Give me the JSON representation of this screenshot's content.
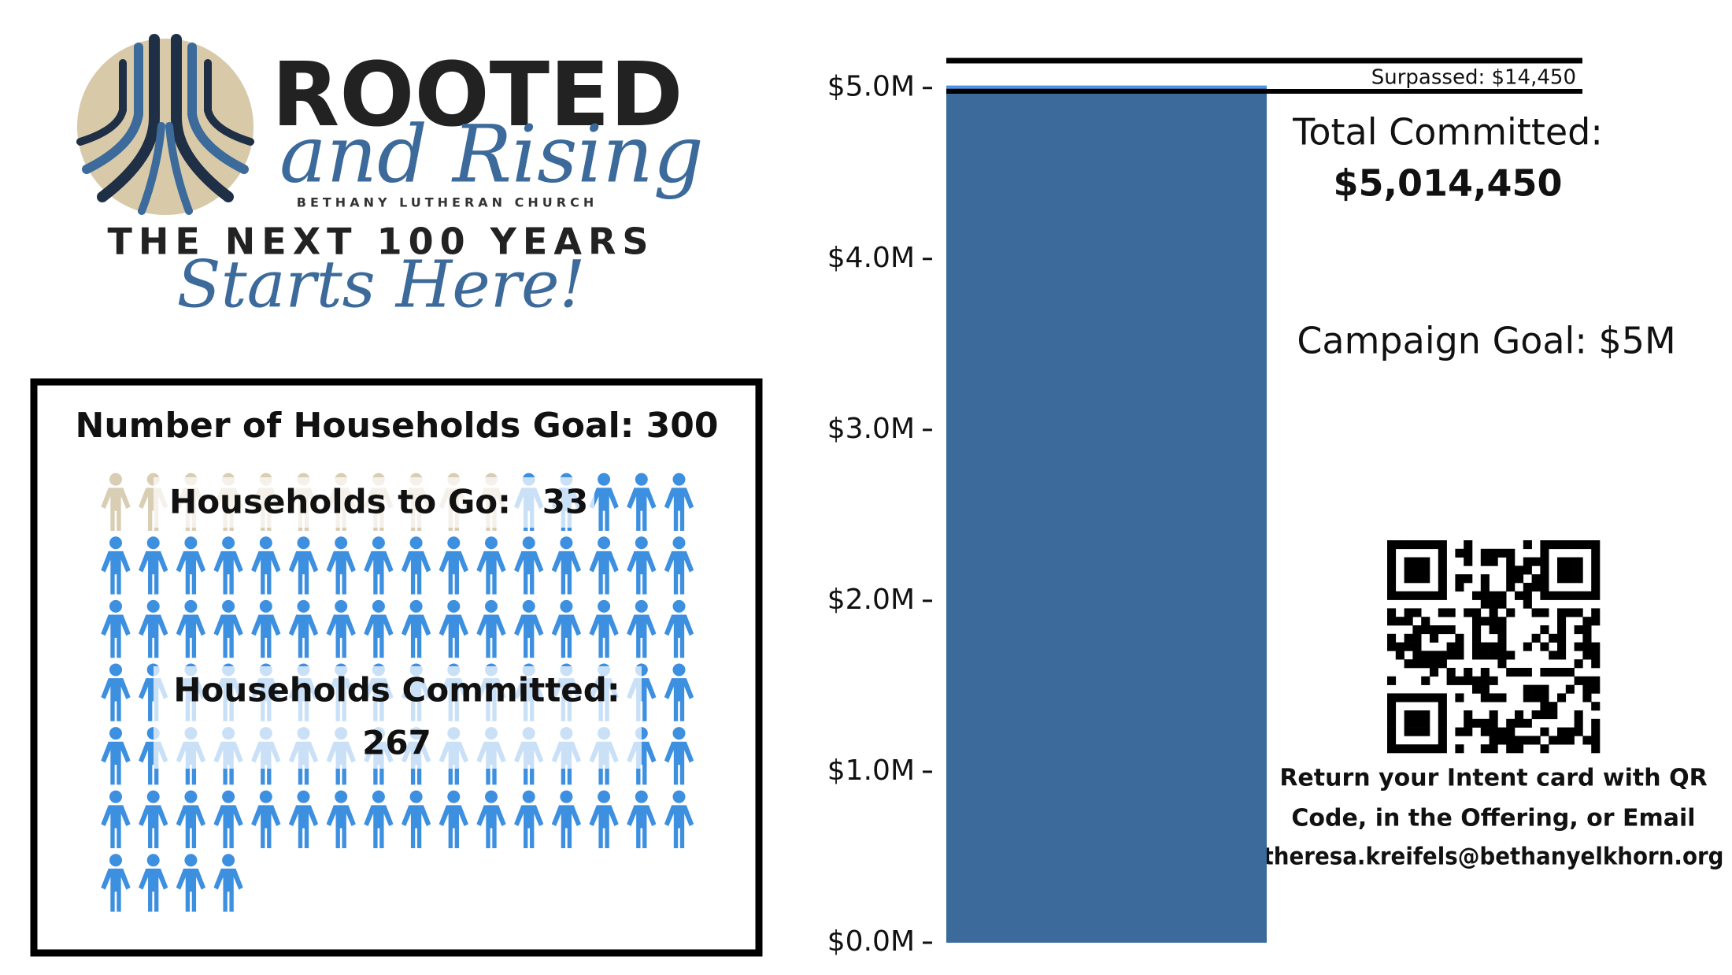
{
  "logo": {
    "title": "ROOTED",
    "subtitle": "and Rising",
    "church": "BETHANY LUTHERAN CHURCH",
    "tagline": "THE NEXT 100 YEARS",
    "tagline_script": "Starts Here!"
  },
  "households": {
    "goal_label": "Number of Households Goal: 300",
    "to_go_label": "Households to Go:",
    "to_go": 33,
    "committed_label": "Households Committed:",
    "committed": 267
  },
  "chart_data": {
    "type": "bar",
    "series": [
      {
        "color": "#3b6a9b",
        "values": [
          5000000
        ]
      },
      {
        "color": "#4a90e8",
        "values": [
          14450
        ]
      }
    ],
    "ylim": [
      0,
      5160000
    ],
    "yticks": [
      {
        "value": 0,
        "label": "$0.0M"
      },
      {
        "value": 1000000,
        "label": "$1.0M"
      },
      {
        "value": 2000000,
        "label": "$2.0M"
      },
      {
        "value": 3000000,
        "label": "$3.0M"
      },
      {
        "value": 4000000,
        "label": "$4.0M"
      },
      {
        "value": 5000000,
        "label": "$5.0M"
      }
    ],
    "annotation": "Surpassed: $14,450",
    "total_label": "Total Committed:",
    "total": "$5,014,450",
    "goal_text": "Campaign Goal: $5M"
  },
  "contact": {
    "lines": [
      "Return your Intent card with QR",
      "Code, in the Offering, or Email",
      "theresa.kreifels@bethanyelkhorn.org"
    ]
  }
}
